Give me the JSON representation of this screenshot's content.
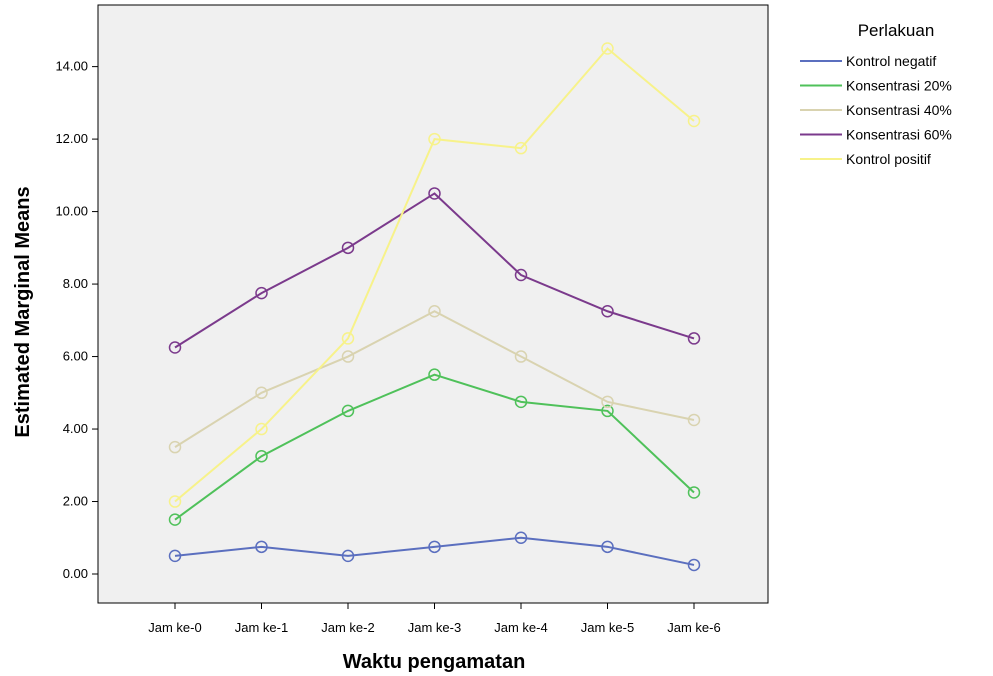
{
  "chart_data": {
    "type": "line",
    "xlabel": "Waktu pengamatan",
    "ylabel": "Estimated Marginal Means",
    "categories": [
      "Jam ke-0",
      "Jam ke-1",
      "Jam ke-2",
      "Jam ke-3",
      "Jam ke-4",
      "Jam ke-5",
      "Jam ke-6"
    ],
    "ylim": [
      -0.8,
      15.7
    ],
    "yticks": [
      0,
      2,
      4,
      6,
      8,
      10,
      12,
      14
    ],
    "ytick_labels": [
      "0.00",
      "2.00",
      "4.00",
      "6.00",
      "8.00",
      "10.00",
      "12.00",
      "14.00"
    ],
    "legend_title": "Perlakuan",
    "legend_position": "top-right, outside plot",
    "plot_background": "#f0f0f0",
    "grid": false,
    "markers": "open circle",
    "series": [
      {
        "name": "Kontrol negatif",
        "color": "#5b6fbf",
        "values": [
          0.5,
          0.75,
          0.5,
          0.75,
          1.0,
          0.75,
          0.25
        ]
      },
      {
        "name": "Konsentrasi 20%",
        "color": "#4fc15a",
        "values": [
          1.5,
          3.25,
          4.5,
          5.5,
          4.75,
          4.5,
          2.25
        ]
      },
      {
        "name": "Konsentrasi 40%",
        "color": "#d9d3b0",
        "values": [
          3.5,
          5.0,
          6.0,
          7.25,
          6.0,
          4.75,
          4.25
        ]
      },
      {
        "name": "Konsentrasi 60%",
        "color": "#7b3a8c",
        "values": [
          6.25,
          7.75,
          9.0,
          10.5,
          8.25,
          7.25,
          6.5
        ]
      },
      {
        "name": "Kontrol positif",
        "color": "#f7f28a",
        "values": [
          2.0,
          4.0,
          6.5,
          12.0,
          11.75,
          14.5,
          12.5
        ]
      }
    ]
  }
}
